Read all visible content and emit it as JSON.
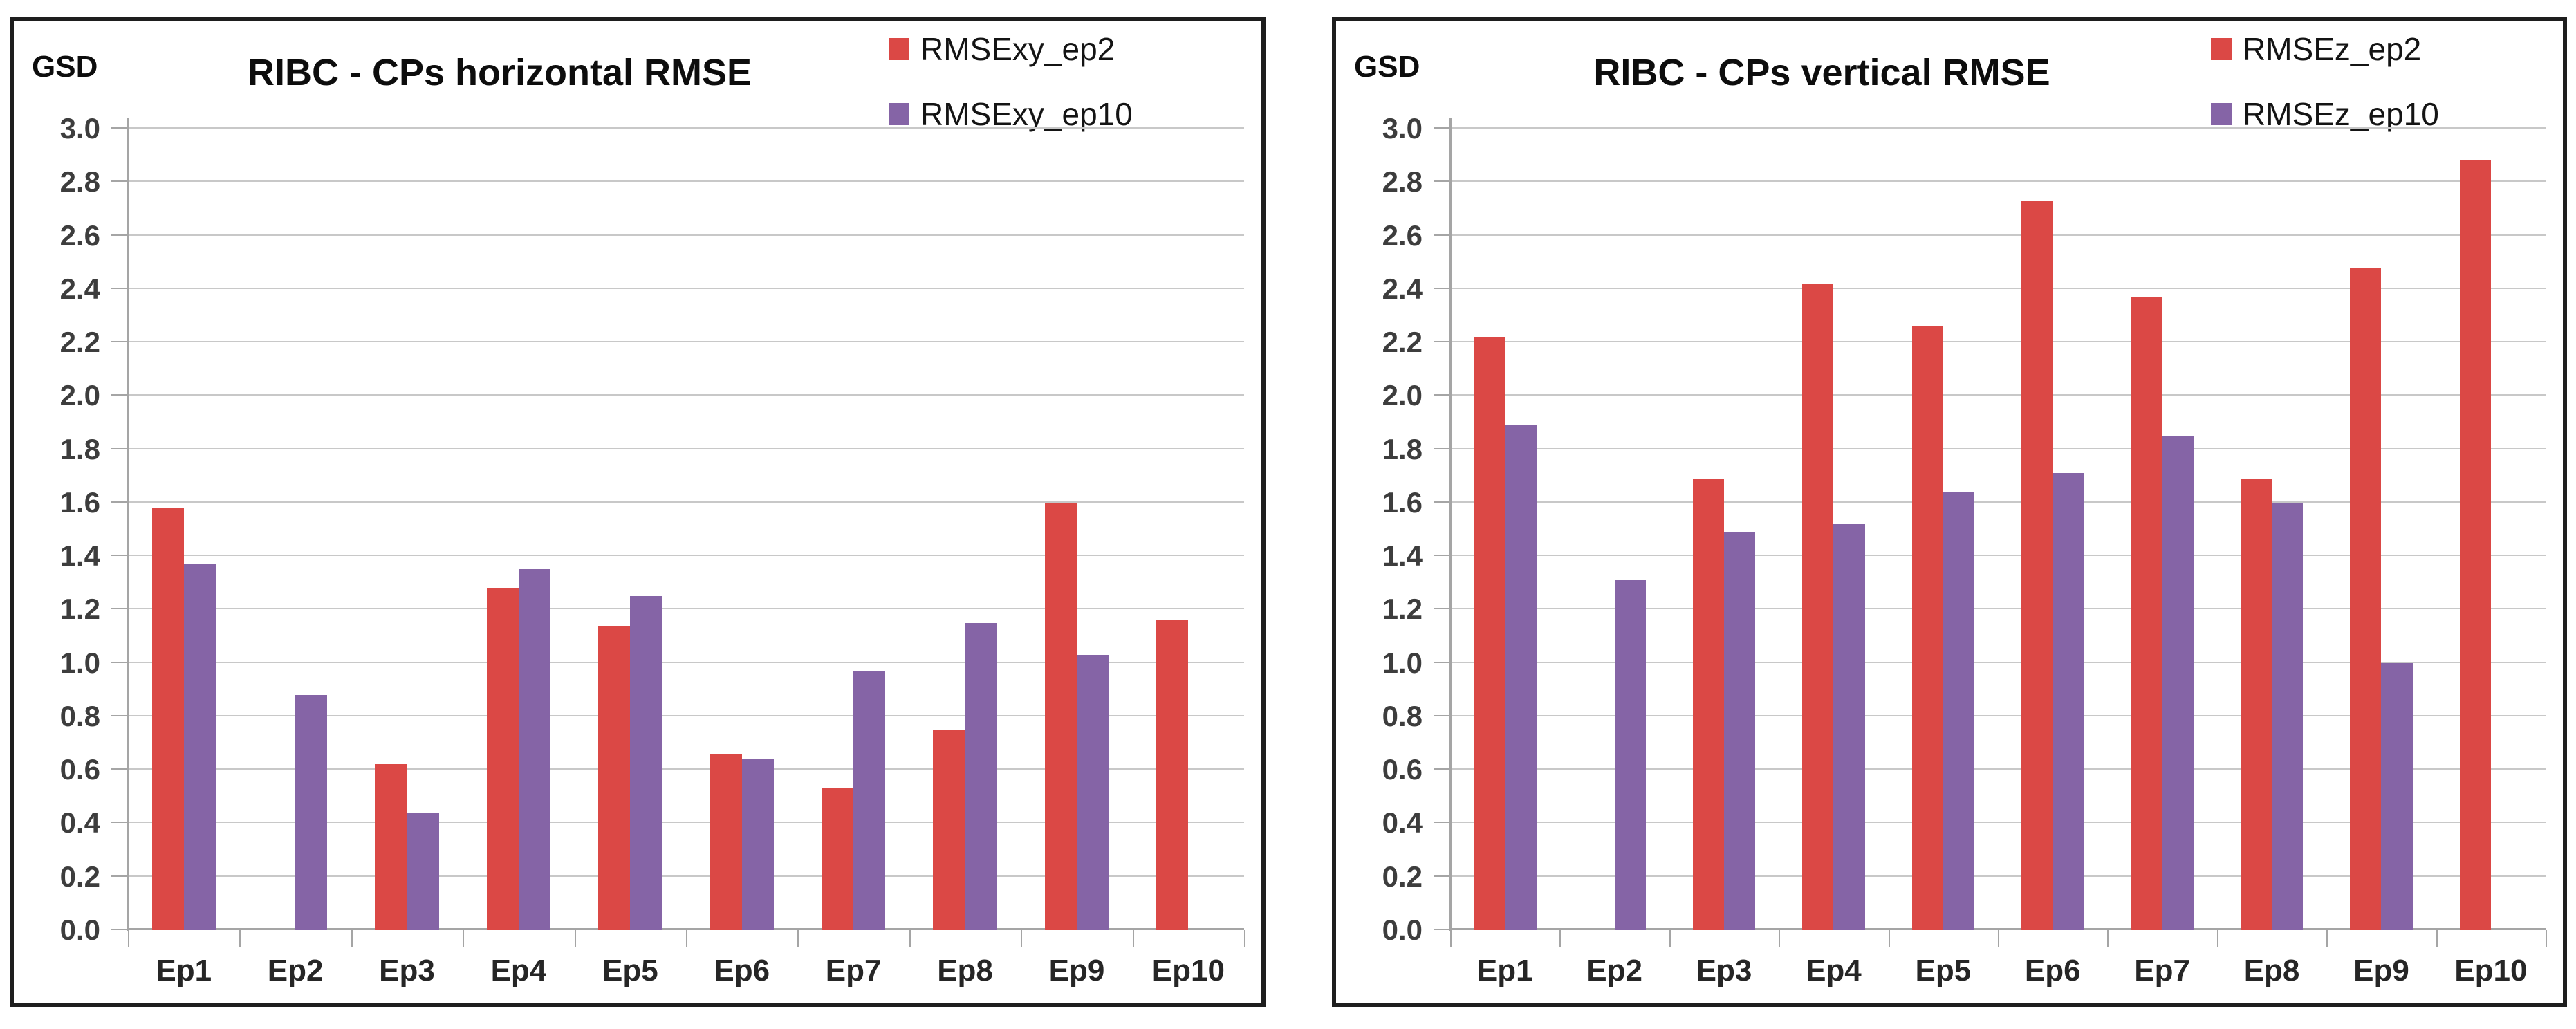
{
  "page": {
    "background": "#ffffff"
  },
  "chart_data": [
    {
      "type": "bar",
      "title": "RIBC - CPs horizontal RMSE",
      "ylabel": "GSD",
      "xlabel": "",
      "categories": [
        "Ep1",
        "Ep2",
        "Ep3",
        "Ep4",
        "Ep5",
        "Ep6",
        "Ep7",
        "Ep8",
        "Ep9",
        "Ep10"
      ],
      "series": [
        {
          "name": "RMSExy_ep2",
          "color": "#db4845",
          "values": [
            1.58,
            null,
            0.62,
            1.28,
            1.14,
            0.66,
            0.53,
            0.75,
            1.6,
            1.16
          ]
        },
        {
          "name": "RMSExy_ep10",
          "color": "#8564a6",
          "values": [
            1.37,
            0.88,
            0.44,
            1.35,
            1.25,
            0.64,
            0.97,
            1.15,
            1.03,
            null
          ]
        }
      ],
      "ylim": [
        0,
        3.0
      ],
      "ytick_step": 0.2,
      "grid": true,
      "legend_position": "top-right",
      "grid_color": "#c8c8c8",
      "axis_color": "#a5a5a5"
    },
    {
      "type": "bar",
      "title": "RIBC - CPs vertical RMSE",
      "ylabel": "GSD",
      "xlabel": "",
      "categories": [
        "Ep1",
        "Ep2",
        "Ep3",
        "Ep4",
        "Ep5",
        "Ep6",
        "Ep7",
        "Ep8",
        "Ep9",
        "Ep10"
      ],
      "series": [
        {
          "name": "RMSEz_ep2",
          "color": "#db4845",
          "values": [
            2.22,
            null,
            1.69,
            2.42,
            2.26,
            2.73,
            2.37,
            1.69,
            2.48,
            2.88
          ]
        },
        {
          "name": "RMSEz_ep10",
          "color": "#8564a6",
          "values": [
            1.89,
            1.31,
            1.49,
            1.52,
            1.64,
            1.71,
            1.85,
            1.6,
            1.0,
            null
          ]
        }
      ],
      "ylim": [
        0,
        3.0
      ],
      "ytick_step": 0.2,
      "grid": true,
      "legend_position": "top-right",
      "grid_color": "#c8c8c8",
      "axis_color": "#a5a5a5"
    }
  ]
}
